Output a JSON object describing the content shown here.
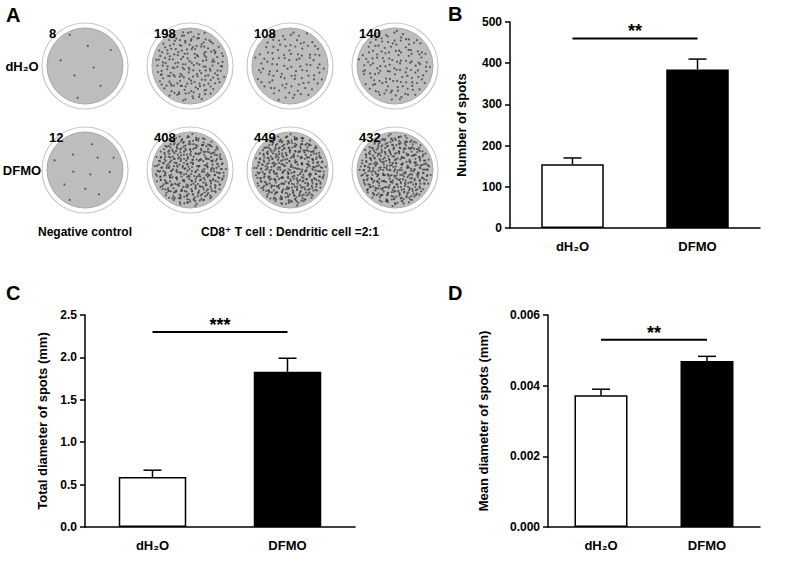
{
  "panel_a": {
    "panel": "A",
    "rows": [
      {
        "label": "dH₂O",
        "counts": [
          8,
          198,
          108,
          140
        ]
      },
      {
        "label": "DFMO",
        "counts": [
          12,
          408,
          449,
          432
        ]
      }
    ],
    "captions": [
      "Negative control",
      "CD8⁺ T cell : Dendritic cell =2:1"
    ]
  },
  "chart_data": [
    {
      "type": "bar",
      "panel": "B",
      "ylabel": "Number of spots",
      "categories": [
        "dH₂O",
        "DFMO"
      ],
      "values": [
        155,
        385
      ],
      "errors": [
        15,
        25
      ],
      "colors": [
        "#ffffff",
        "#000000"
      ],
      "ylim": [
        0,
        500
      ],
      "yticks": [
        0,
        100,
        200,
        300,
        400,
        500
      ],
      "grid": false,
      "annotations": [
        {
          "text": "**",
          "from": "dH₂O",
          "to": "DFMO",
          "y": 460
        }
      ]
    },
    {
      "type": "bar",
      "panel": "C",
      "ylabel": "Total diameter of spots (mm)",
      "categories": [
        "dH₂O",
        "DFMO"
      ],
      "values": [
        0.59,
        1.83
      ],
      "errors": [
        0.08,
        0.16
      ],
      "colors": [
        "#ffffff",
        "#000000"
      ],
      "ylim": [
        0,
        2.5
      ],
      "yticks": [
        {
          "value": 0,
          "label": "0.0"
        },
        0.5,
        {
          "value": 1,
          "label": "1.0"
        },
        1.5,
        {
          "value": 2,
          "label": "2.0"
        },
        2.5
      ],
      "grid": false,
      "annotations": [
        {
          "text": "***",
          "from": "dH₂O",
          "to": "DFMO",
          "y": 2.3
        }
      ]
    },
    {
      "type": "bar",
      "panel": "D",
      "ylabel": "Mean diameter of spots (mm)",
      "categories": [
        "dH₂O",
        "DFMO"
      ],
      "values": [
        0.00373,
        0.0047
      ],
      "errors": [
        0.00017,
        0.00013
      ],
      "colors": [
        "#ffffff",
        "#000000"
      ],
      "ylim": [
        0,
        0.006
      ],
      "yticks": [
        {
          "value": 0,
          "label": "0.000"
        },
        {
          "value": 0.002,
          "label": "0.002"
        },
        {
          "value": 0.004,
          "label": "0.004"
        },
        {
          "value": 0.006,
          "label": "0.006"
        }
      ],
      "grid": false,
      "annotations": [
        {
          "text": "**",
          "from": "dH₂O",
          "to": "DFMO",
          "y": 0.0053
        }
      ]
    }
  ]
}
